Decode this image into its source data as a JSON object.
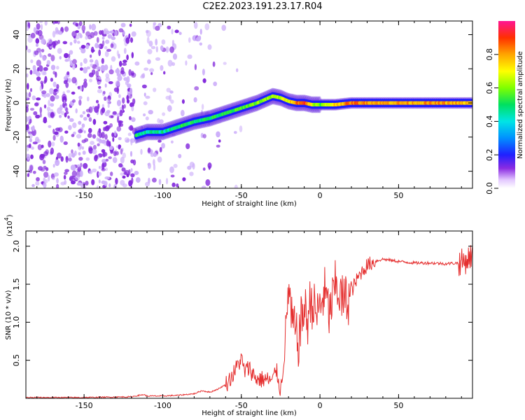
{
  "title": "C2E2.2023.191.23.17.R04",
  "colors": {
    "snr_line": "#e53030",
    "spectrum_noise": "#8a2be2"
  },
  "chart_data": [
    {
      "type": "heatmap",
      "xlabel": "Height of straight line (km)",
      "ylabel": "Frequency (Hz)",
      "xlim": [
        -187,
        97
      ],
      "ylim": [
        -50,
        48
      ],
      "xticks": [
        -150,
        -100,
        -50,
        0,
        50
      ],
      "yticks": [
        -40,
        -20,
        0,
        20,
        40
      ],
      "colorbar": {
        "label": "Normalized spectral amplitude",
        "ticks": [
          0.0,
          0.2,
          0.4,
          0.6,
          0.8
        ],
        "range": [
          0,
          1
        ]
      },
      "ridge": {
        "x": [
          -117,
          -110,
          -100,
          -90,
          -80,
          -70,
          -60,
          -50,
          -40,
          -35,
          -30,
          -25,
          -20,
          -15,
          -10,
          -5,
          0,
          10,
          20,
          40,
          60,
          80,
          97
        ],
        "y": [
          -19,
          -17,
          -17,
          -14,
          -11,
          -9,
          -6,
          -3,
          0,
          2,
          4,
          3,
          1,
          0,
          0,
          -1,
          -1,
          -1,
          0,
          0,
          0,
          0,
          0
        ],
        "amplitude": [
          0.5,
          0.45,
          0.45,
          0.5,
          0.5,
          0.5,
          0.5,
          0.55,
          0.6,
          0.6,
          0.6,
          0.65,
          0.7,
          0.85,
          0.9,
          0.7,
          0.55,
          0.75,
          0.85,
          0.8,
          0.8,
          0.8,
          0.75
        ]
      }
    },
    {
      "type": "line",
      "xlabel": "Height of straight line (km)",
      "ylabel": "SNR (10 * v/v)",
      "yscale_label": "(x10",
      "yscale_exponent": "4",
      "xlim": [
        -187,
        97
      ],
      "ylim": [
        0,
        2.2
      ],
      "xticks": [
        -150,
        -100,
        -50,
        0,
        50
      ],
      "yticks": [
        0.5,
        1.0,
        1.5,
        2.0
      ],
      "series": [
        {
          "x": [
            -187,
            -150,
            -120,
            -112,
            -110,
            -100,
            -90,
            -80,
            -75,
            -70,
            -65,
            -60,
            -55,
            -52,
            -50,
            -48,
            -45,
            -42,
            -40,
            -35,
            -30,
            -28,
            -25,
            -22,
            -20,
            -18,
            -16,
            -14,
            -12,
            -10,
            -8,
            -6,
            -4,
            -2,
            0,
            3,
            6,
            10,
            14,
            18,
            22,
            26,
            30,
            35,
            40,
            50,
            60,
            70,
            80,
            88,
            92,
            95,
            97
          ],
          "y": [
            0.01,
            0.01,
            0.02,
            0.05,
            0.03,
            0.03,
            0.04,
            0.06,
            0.1,
            0.08,
            0.12,
            0.18,
            0.32,
            0.45,
            0.52,
            0.35,
            0.4,
            0.3,
            0.25,
            0.25,
            0.22,
            0.4,
            0.1,
            0.7,
            1.5,
            1.0,
            0.9,
            0.7,
            1.0,
            1.2,
            1.0,
            1.3,
            1.2,
            1.1,
            1.2,
            1.4,
            1.1,
            1.5,
            1.3,
            1.3,
            1.5,
            1.65,
            1.75,
            1.8,
            1.83,
            1.8,
            1.78,
            1.78,
            1.77,
            1.78,
            1.8,
            1.85,
            1.9
          ]
        }
      ]
    }
  ]
}
